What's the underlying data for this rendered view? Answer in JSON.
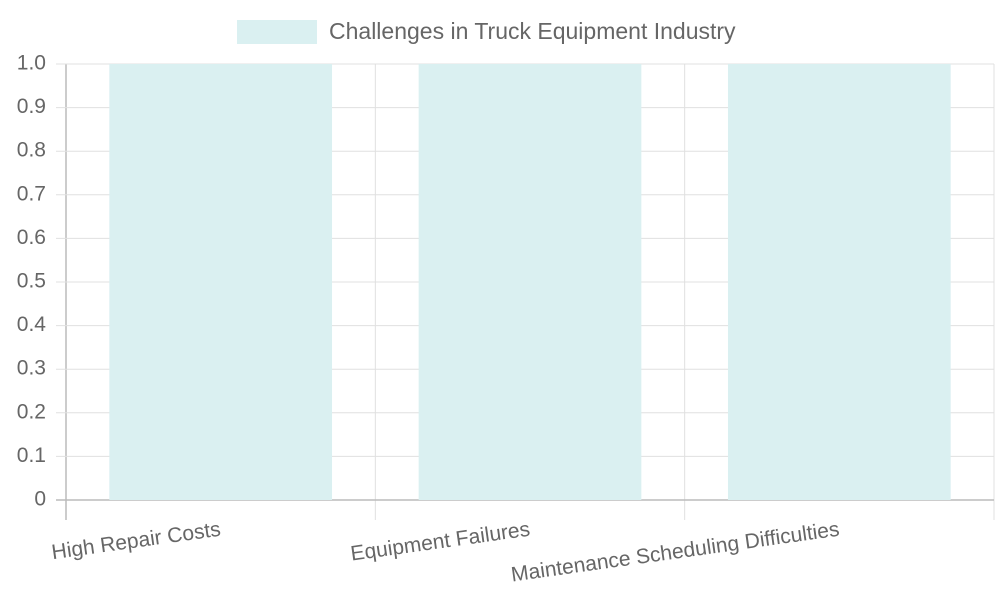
{
  "chart_data": {
    "type": "bar",
    "categories": [
      "High Repair Costs",
      "Equipment Failures",
      "Maintenance Scheduling Difficulties"
    ],
    "series": [
      {
        "name": "Challenges in Truck Equipment Industry",
        "color": "#daf0f1",
        "values": [
          1,
          1,
          1
        ]
      }
    ],
    "ylim": [
      0,
      1
    ],
    "yticks": [
      0,
      0.1,
      0.2,
      0.3,
      0.4,
      0.5,
      0.6,
      0.7,
      0.8,
      0.9,
      {
        "value": 1,
        "label": "1.0"
      }
    ],
    "grid": true
  }
}
